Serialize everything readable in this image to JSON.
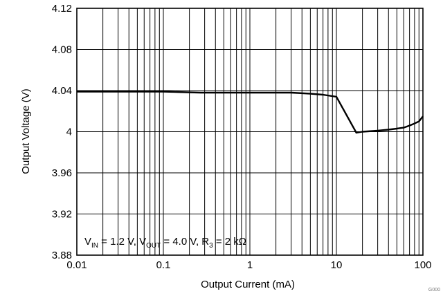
{
  "chart_data": {
    "type": "line",
    "xlabel": "Output Current (mA)",
    "ylabel": "Output Voltage (V)",
    "xscale": "log",
    "xlim": [
      0.01,
      100
    ],
    "ylim": [
      3.88,
      4.12
    ],
    "x_tick_labels": [
      "0.01",
      "0.1",
      "1",
      "10",
      "100"
    ],
    "y_tick_labels": [
      "3.88",
      "3.92",
      "3.96",
      "4",
      "4.04",
      "4.08",
      "4.12"
    ],
    "grid": true,
    "series": [
      {
        "x": [
          0.01,
          0.1,
          0.27,
          1,
          3,
          5,
          7,
          10,
          17,
          20,
          30,
          40,
          50,
          60,
          70,
          80,
          90,
          100
        ],
        "y": [
          4.039,
          4.039,
          4.038,
          4.038,
          4.038,
          4.037,
          4.036,
          4.034,
          3.999,
          4.0,
          4.001,
          4.002,
          4.003,
          4.004,
          4.006,
          4.008,
          4.01,
          4.015
        ]
      }
    ],
    "annotation": {
      "parts": [
        {
          "t": "V",
          "s": "n"
        },
        {
          "t": "IN",
          "s": "sub"
        },
        {
          "t": " = 1.2 V, V",
          "s": "n"
        },
        {
          "t": "OUT",
          "s": "sub"
        },
        {
          "t": " = 4.0 V, R",
          "s": "n"
        },
        {
          "t": "3",
          "s": "sub"
        },
        {
          "t": " = 2 kΩ",
          "s": "n"
        }
      ]
    },
    "figure_code": "G000",
    "colors": {
      "line": "#000000",
      "grid": "#000000",
      "background": "#ffffff"
    }
  }
}
